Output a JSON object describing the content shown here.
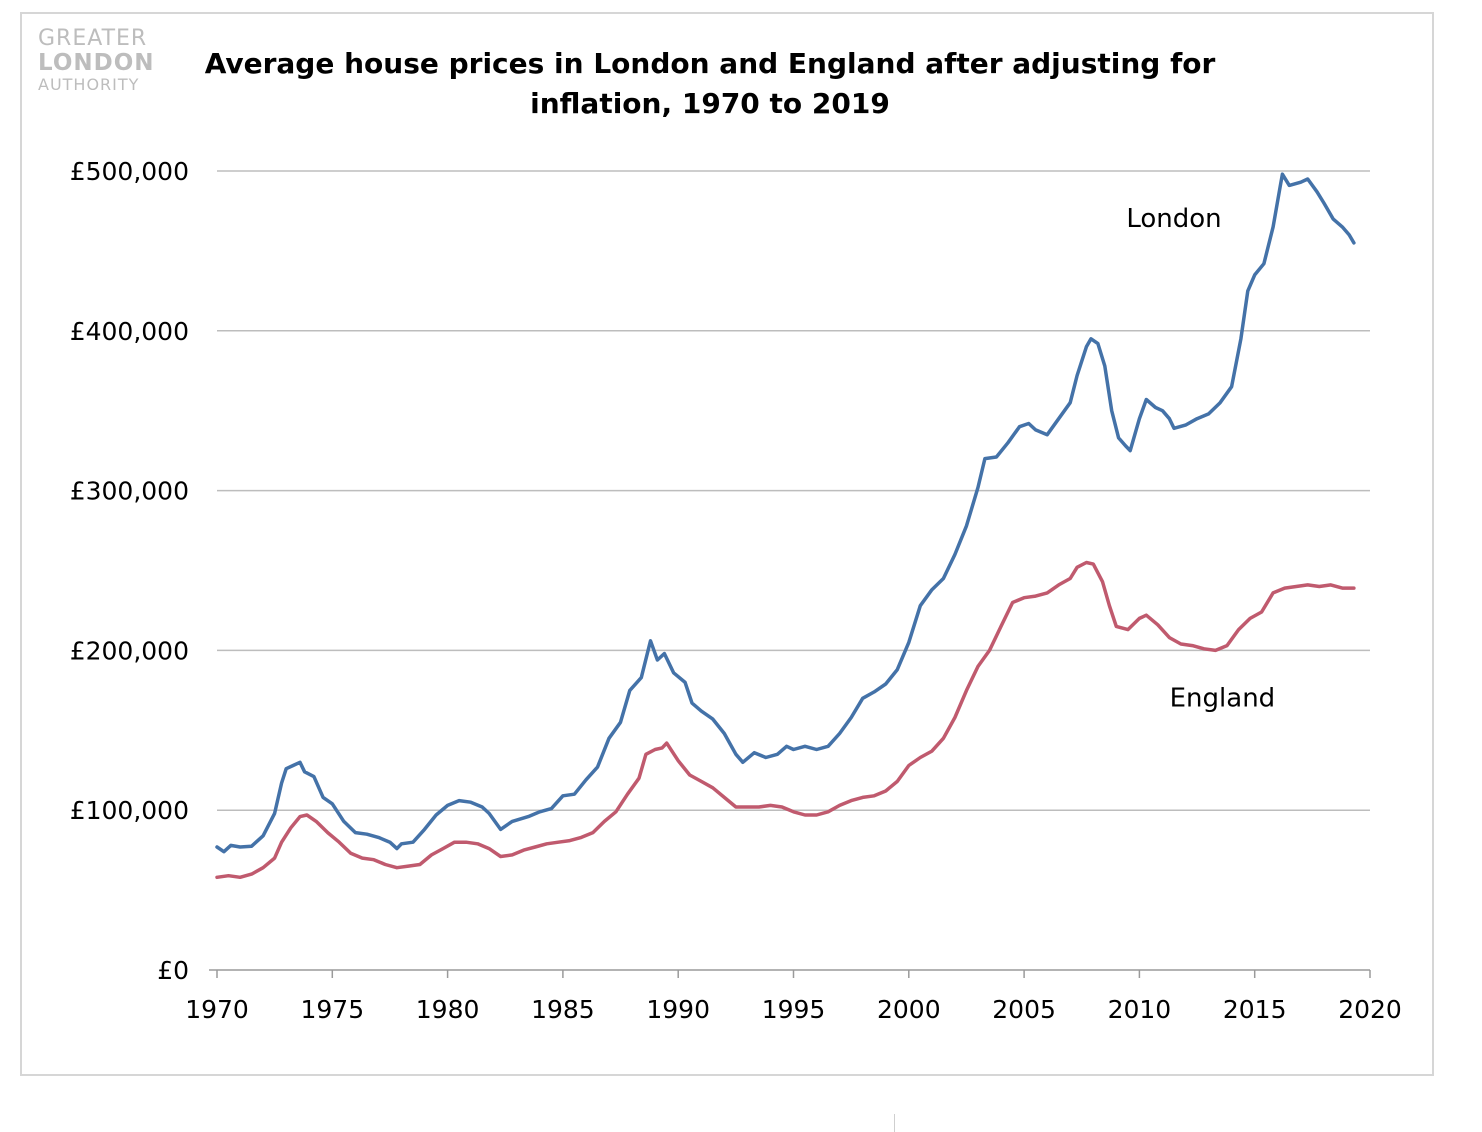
{
  "logo": {
    "line1": "GREATER",
    "line2": "LONDON",
    "line3": "AUTHORITY"
  },
  "colors": {
    "london": "#4472a8",
    "england": "#c05a6e",
    "grid": "#bdbdbd",
    "axis": "#9a9a9a"
  },
  "chart_data": {
    "type": "line",
    "title": "Average house prices in London and England after adjusting for inflation, 1970  to 2019",
    "xlabel": "",
    "ylabel": "",
    "xlim": [
      1970,
      2020
    ],
    "ylim": [
      0,
      500000
    ],
    "x_ticks": [
      1970,
      1975,
      1980,
      1985,
      1990,
      1995,
      2000,
      2005,
      2010,
      2015,
      2020
    ],
    "y_ticks": [
      0,
      100000,
      200000,
      300000,
      400000,
      500000
    ],
    "y_tick_labels": [
      "£0",
      "£100,000",
      "£200,000",
      "£300,000",
      "£400,000",
      "£500,000"
    ],
    "grid": "horizontal",
    "series": [
      {
        "name": "London",
        "label": "London",
        "label_at": [
          2011.5,
          465000
        ],
        "points": [
          [
            1970,
            77000
          ],
          [
            1970.3,
            74000
          ],
          [
            1970.6,
            78000
          ],
          [
            1971,
            77000
          ],
          [
            1971.5,
            77500
          ],
          [
            1972,
            84000
          ],
          [
            1972.5,
            98000
          ],
          [
            1972.8,
            117000
          ],
          [
            1973,
            126000
          ],
          [
            1973.3,
            128000
          ],
          [
            1973.6,
            130000
          ],
          [
            1973.8,
            124000
          ],
          [
            1974.2,
            121000
          ],
          [
            1974.6,
            108000
          ],
          [
            1975,
            104000
          ],
          [
            1975.5,
            93000
          ],
          [
            1976,
            86000
          ],
          [
            1976.5,
            85000
          ],
          [
            1977,
            83000
          ],
          [
            1977.5,
            80000
          ],
          [
            1977.8,
            76000
          ],
          [
            1978,
            79000
          ],
          [
            1978.5,
            80000
          ],
          [
            1979,
            88000
          ],
          [
            1979.5,
            97000
          ],
          [
            1980,
            103000
          ],
          [
            1980.5,
            106000
          ],
          [
            1981,
            105000
          ],
          [
            1981.5,
            102000
          ],
          [
            1981.8,
            98000
          ],
          [
            1982.3,
            88000
          ],
          [
            1982.8,
            93000
          ],
          [
            1983.5,
            96000
          ],
          [
            1984,
            99000
          ],
          [
            1984.5,
            101000
          ],
          [
            1985,
            109000
          ],
          [
            1985.5,
            110000
          ],
          [
            1986,
            119000
          ],
          [
            1986.5,
            127000
          ],
          [
            1987,
            145000
          ],
          [
            1987.5,
            155000
          ],
          [
            1987.9,
            175000
          ],
          [
            1988.4,
            183000
          ],
          [
            1988.8,
            206000
          ],
          [
            1989.1,
            194000
          ],
          [
            1989.4,
            198000
          ],
          [
            1989.8,
            186000
          ],
          [
            1990.3,
            180000
          ],
          [
            1990.6,
            167000
          ],
          [
            1991,
            162000
          ],
          [
            1991.5,
            157000
          ],
          [
            1992,
            148000
          ],
          [
            1992.5,
            135000
          ],
          [
            1992.8,
            130000
          ],
          [
            1993.3,
            136000
          ],
          [
            1993.8,
            133000
          ],
          [
            1994.3,
            135000
          ],
          [
            1994.7,
            140000
          ],
          [
            1995,
            138000
          ],
          [
            1995.5,
            140000
          ],
          [
            1996,
            138000
          ],
          [
            1996.5,
            140000
          ],
          [
            1997,
            148000
          ],
          [
            1997.5,
            158000
          ],
          [
            1998,
            170000
          ],
          [
            1998.5,
            174000
          ],
          [
            1999,
            179000
          ],
          [
            1999.5,
            188000
          ],
          [
            2000,
            205000
          ],
          [
            2000.5,
            228000
          ],
          [
            2001,
            238000
          ],
          [
            2001.5,
            245000
          ],
          [
            2002,
            260000
          ],
          [
            2002.5,
            278000
          ],
          [
            2003,
            302000
          ],
          [
            2003.3,
            320000
          ],
          [
            2003.8,
            321000
          ],
          [
            2004.3,
            330000
          ],
          [
            2004.8,
            340000
          ],
          [
            2005.2,
            342000
          ],
          [
            2005.5,
            338000
          ],
          [
            2006,
            335000
          ],
          [
            2006.5,
            345000
          ],
          [
            2007,
            355000
          ],
          [
            2007.3,
            372000
          ],
          [
            2007.7,
            390000
          ],
          [
            2007.9,
            395000
          ],
          [
            2008.2,
            392000
          ],
          [
            2008.5,
            378000
          ],
          [
            2008.8,
            350000
          ],
          [
            2009.1,
            333000
          ],
          [
            2009.4,
            328000
          ],
          [
            2009.6,
            325000
          ],
          [
            2010,
            345000
          ],
          [
            2010.3,
            357000
          ],
          [
            2010.7,
            352000
          ],
          [
            2011,
            350000
          ],
          [
            2011.3,
            345000
          ],
          [
            2011.5,
            339000
          ],
          [
            2012,
            341000
          ],
          [
            2012.5,
            345000
          ],
          [
            2013,
            348000
          ],
          [
            2013.5,
            355000
          ],
          [
            2014,
            365000
          ],
          [
            2014.4,
            395000
          ],
          [
            2014.7,
            425000
          ],
          [
            2015,
            435000
          ],
          [
            2015.4,
            442000
          ],
          [
            2015.8,
            465000
          ],
          [
            2016.1,
            490000
          ],
          [
            2016.2,
            498000
          ],
          [
            2016.5,
            491000
          ],
          [
            2017,
            493000
          ],
          [
            2017.3,
            495000
          ],
          [
            2017.7,
            487000
          ],
          [
            2018,
            480000
          ],
          [
            2018.4,
            470000
          ],
          [
            2018.8,
            465000
          ],
          [
            2019.1,
            460000
          ],
          [
            2019.3,
            455000
          ]
        ]
      },
      {
        "name": "England",
        "label": "England",
        "label_at": [
          2013.6,
          165000
        ],
        "points": [
          [
            1970,
            58000
          ],
          [
            1970.5,
            59000
          ],
          [
            1971,
            58000
          ],
          [
            1971.5,
            60000
          ],
          [
            1972,
            64000
          ],
          [
            1972.5,
            70000
          ],
          [
            1972.8,
            80000
          ],
          [
            1973.2,
            89000
          ],
          [
            1973.6,
            96000
          ],
          [
            1973.9,
            97000
          ],
          [
            1974.3,
            93000
          ],
          [
            1974.8,
            86000
          ],
          [
            1975.3,
            80000
          ],
          [
            1975.8,
            73000
          ],
          [
            1976.3,
            70000
          ],
          [
            1976.8,
            69000
          ],
          [
            1977.3,
            66000
          ],
          [
            1977.8,
            64000
          ],
          [
            1978.3,
            65000
          ],
          [
            1978.8,
            66000
          ],
          [
            1979.3,
            72000
          ],
          [
            1979.8,
            76000
          ],
          [
            1980.3,
            80000
          ],
          [
            1980.8,
            80000
          ],
          [
            1981.3,
            79000
          ],
          [
            1981.8,
            76000
          ],
          [
            1982.3,
            71000
          ],
          [
            1982.8,
            72000
          ],
          [
            1983.3,
            75000
          ],
          [
            1983.8,
            77000
          ],
          [
            1984.3,
            79000
          ],
          [
            1984.8,
            80000
          ],
          [
            1985.3,
            81000
          ],
          [
            1985.8,
            83000
          ],
          [
            1986.3,
            86000
          ],
          [
            1986.8,
            93000
          ],
          [
            1987.3,
            99000
          ],
          [
            1987.8,
            110000
          ],
          [
            1988.3,
            120000
          ],
          [
            1988.6,
            135000
          ],
          [
            1989,
            138000
          ],
          [
            1989.3,
            139000
          ],
          [
            1989.5,
            142000
          ],
          [
            1990,
            131000
          ],
          [
            1990.5,
            122000
          ],
          [
            1991,
            118000
          ],
          [
            1991.5,
            114000
          ],
          [
            1992,
            108000
          ],
          [
            1992.5,
            102000
          ],
          [
            1993,
            102000
          ],
          [
            1993.5,
            102000
          ],
          [
            1994,
            103000
          ],
          [
            1994.5,
            102000
          ],
          [
            1995,
            99000
          ],
          [
            1995.5,
            97000
          ],
          [
            1996,
            97000
          ],
          [
            1996.5,
            99000
          ],
          [
            1997,
            103000
          ],
          [
            1997.5,
            106000
          ],
          [
            1998,
            108000
          ],
          [
            1998.5,
            109000
          ],
          [
            1999,
            112000
          ],
          [
            1999.5,
            118000
          ],
          [
            2000,
            128000
          ],
          [
            2000.5,
            133000
          ],
          [
            2001,
            137000
          ],
          [
            2001.5,
            145000
          ],
          [
            2002,
            158000
          ],
          [
            2002.5,
            175000
          ],
          [
            2003,
            190000
          ],
          [
            2003.5,
            200000
          ],
          [
            2004,
            215000
          ],
          [
            2004.5,
            230000
          ],
          [
            2005,
            233000
          ],
          [
            2005.5,
            234000
          ],
          [
            2006,
            236000
          ],
          [
            2006.5,
            241000
          ],
          [
            2007,
            245000
          ],
          [
            2007.3,
            252000
          ],
          [
            2007.7,
            255000
          ],
          [
            2008,
            254000
          ],
          [
            2008.4,
            243000
          ],
          [
            2008.7,
            228000
          ],
          [
            2009,
            215000
          ],
          [
            2009.5,
            213000
          ],
          [
            2010,
            220000
          ],
          [
            2010.3,
            222000
          ],
          [
            2010.8,
            216000
          ],
          [
            2011.3,
            208000
          ],
          [
            2011.8,
            204000
          ],
          [
            2012.3,
            203000
          ],
          [
            2012.8,
            201000
          ],
          [
            2013.3,
            200000
          ],
          [
            2013.8,
            203000
          ],
          [
            2014.3,
            213000
          ],
          [
            2014.8,
            220000
          ],
          [
            2015.3,
            224000
          ],
          [
            2015.8,
            236000
          ],
          [
            2016.3,
            239000
          ],
          [
            2016.8,
            240000
          ],
          [
            2017.3,
            241000
          ],
          [
            2017.8,
            240000
          ],
          [
            2018.3,
            241000
          ],
          [
            2018.8,
            239000
          ],
          [
            2019.3,
            239000
          ]
        ]
      }
    ]
  }
}
